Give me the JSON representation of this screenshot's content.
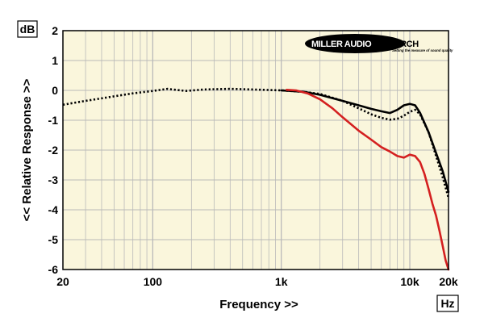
{
  "chart_data": {
    "type": "line",
    "title": "",
    "xlabel": "Frequency >>",
    "ylabel": "<< Relative Response >>",
    "y_unit": "dB",
    "x_unit": "Hz",
    "x_scale": "log",
    "xlim": [
      20,
      20000
    ],
    "ylim": [
      -6,
      2
    ],
    "x_tick_labels": [
      {
        "value": 20,
        "label": "20"
      },
      {
        "value": 100,
        "label": "100"
      },
      {
        "value": 1000,
        "label": "1k"
      },
      {
        "value": 10000,
        "label": "10k"
      },
      {
        "value": 20000,
        "label": "20k"
      }
    ],
    "y_ticks": [
      2,
      1,
      0,
      -1,
      -2,
      -3,
      -4,
      -5,
      -6
    ],
    "grid": true,
    "series": [
      {
        "color": "#000000",
        "style": "dotted",
        "x": [
          20,
          30,
          50,
          70,
          100,
          130,
          180,
          250,
          400,
          600,
          1000,
          1500,
          2000,
          3000,
          4000,
          5000,
          6000,
          7000,
          8000,
          9000,
          10000,
          11000,
          12000,
          14000,
          16000,
          18000,
          20000
        ],
        "y": [
          -0.48,
          -0.35,
          -0.2,
          -0.1,
          -0.02,
          0.05,
          -0.02,
          0.03,
          0.05,
          0.03,
          0.0,
          -0.05,
          -0.12,
          -0.35,
          -0.6,
          -0.8,
          -0.92,
          -0.98,
          -0.95,
          -0.85,
          -0.72,
          -0.65,
          -0.8,
          -1.4,
          -2.2,
          -2.9,
          -3.6
        ]
      },
      {
        "color": "#000000",
        "style": "solid",
        "x": [
          1000,
          1500,
          2000,
          3000,
          4000,
          5000,
          6000,
          7000,
          8000,
          9000,
          10000,
          11000,
          12000,
          14000,
          16000,
          18000,
          20000
        ],
        "y": [
          0.0,
          -0.05,
          -0.15,
          -0.35,
          -0.5,
          -0.62,
          -0.7,
          -0.76,
          -0.65,
          -0.5,
          -0.45,
          -0.5,
          -0.75,
          -1.4,
          -2.1,
          -2.7,
          -3.4
        ]
      },
      {
        "color": "#d42020",
        "style": "solid",
        "x": [
          1100,
          1300,
          1600,
          2000,
          2500,
          3000,
          4000,
          5000,
          6000,
          7000,
          8000,
          9000,
          10000,
          11000,
          12000,
          13000,
          14000,
          15000,
          16000,
          17000,
          18000,
          19000,
          20000
        ],
        "y": [
          0.02,
          0.0,
          -0.1,
          -0.3,
          -0.6,
          -0.9,
          -1.35,
          -1.65,
          -1.9,
          -2.05,
          -2.2,
          -2.25,
          -2.15,
          -2.2,
          -2.4,
          -2.8,
          -3.3,
          -3.8,
          -4.2,
          -4.7,
          -5.2,
          -5.7,
          -6.0
        ]
      }
    ]
  },
  "logo": {
    "brand": "MILLER AUDIO RESEARCH",
    "tagline": "Setting the measure of sound quality",
    "colors": {
      "ellipse": "#000000",
      "text": "#ffffff",
      "brand_text": "#000000"
    }
  },
  "style": {
    "plot_background": "#faf6dc",
    "grid_color": "#b9b9b9",
    "page_background": "#ffffff"
  }
}
